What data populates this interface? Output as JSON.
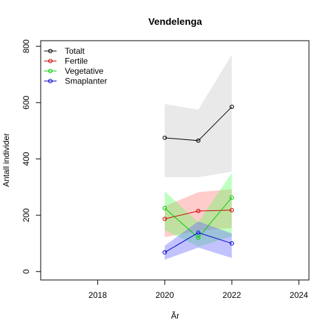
{
  "chart_data": {
    "type": "line",
    "title": "Vendelenga",
    "xlabel": "Ãr",
    "ylabel": "Antall individer",
    "xlim": [
      2016.3,
      2024.3
    ],
    "ylim": [
      -30,
      820
    ],
    "xticks": [
      2018,
      2020,
      2022,
      2024
    ],
    "yticks": [
      0,
      200,
      400,
      600,
      800
    ],
    "legend_position": "top-left",
    "grid": false,
    "x": [
      2020,
      2021,
      2022
    ],
    "series": [
      {
        "name": "Totalt",
        "color": "#000000",
        "band_color": "#c8c8c8",
        "values": [
          475,
          465,
          585
        ],
        "lower": [
          335,
          335,
          355
        ],
        "upper": [
          595,
          575,
          770
        ]
      },
      {
        "name": "Fertile",
        "color": "#cc0000",
        "band_color": "#ff8080",
        "values": [
          187,
          215,
          218
        ],
        "lower": [
          122,
          145,
          155
        ],
        "upper": [
          232,
          282,
          292
        ]
      },
      {
        "name": "Vegetative",
        "color": "#00cc00",
        "band_color": "#60ff60",
        "values": [
          225,
          120,
          263
        ],
        "lower": [
          148,
          88,
          125
        ],
        "upper": [
          285,
          175,
          350
        ]
      },
      {
        "name": "Smaplanter",
        "color": "#0000cc",
        "band_color": "#6666ff",
        "values": [
          68,
          138,
          100
        ],
        "lower": [
          42,
          85,
          48
        ],
        "upper": [
          92,
          178,
          135
        ]
      }
    ]
  }
}
